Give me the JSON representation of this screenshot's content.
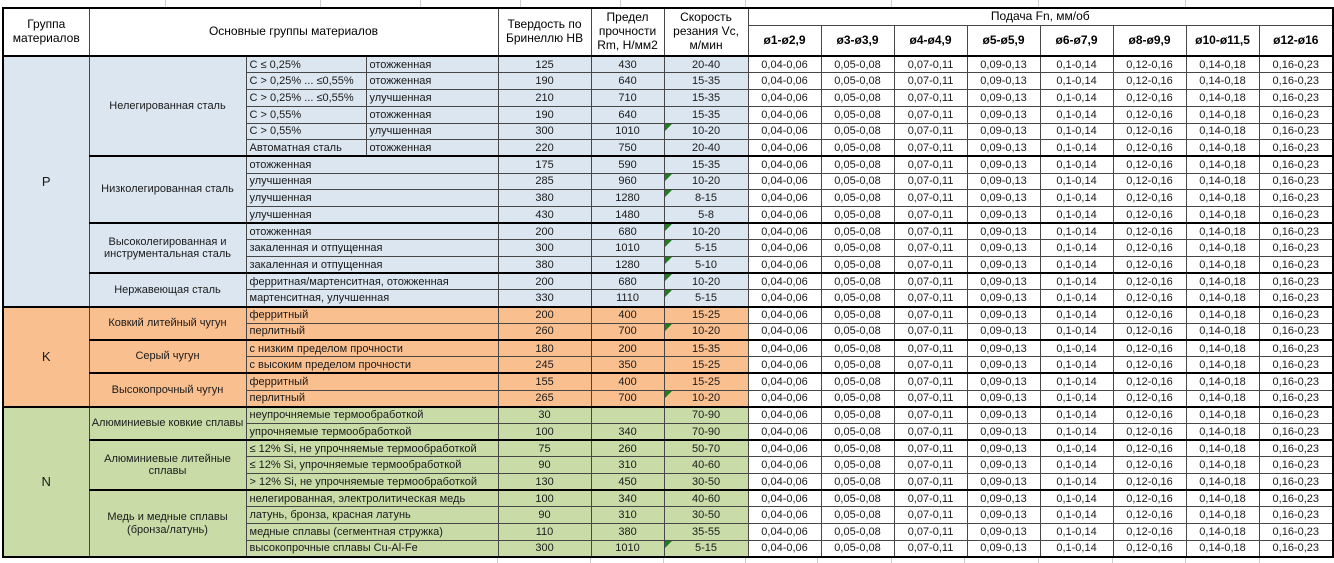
{
  "header": {
    "col_group": "Группа материалов",
    "col_main_groups": "Основные группы материалов",
    "col_hardness": "Твердость по Бринеллю HB",
    "col_strength": "Предел прочности Rm, Н/мм2",
    "col_speed": "Скорость резания Vc, м/мин",
    "col_feed": "Подача Fn, мм/об",
    "feed_columns": [
      "ø1-ø2,9",
      "ø3-ø3,9",
      "ø4-ø4,9",
      "ø5-ø5,9",
      "ø6-ø7,9",
      "ø8-ø9,9",
      "ø10-ø11,5",
      "ø12-ø16"
    ]
  },
  "feed_values": [
    "0,04-0,06",
    "0,05-0,08",
    "0,07-0,11",
    "0,09-0,13",
    "0,1-0,14",
    "0,12-0,16",
    "0,14-0,18",
    "0,16-0,23"
  ],
  "colors": {
    "section_p": "#dce6f1",
    "section_k": "#fabf8f",
    "section_n": "#c9dca8",
    "flag_triangle": "#1f7d1f",
    "thin_border": "#474747",
    "thick_border": "#000000",
    "gridline": "#cdcdcd"
  },
  "sections": [
    {
      "letter": "P",
      "color": "#dce6f1",
      "subgroups": [
        {
          "name": "Нелегированная сталь",
          "rows": [
            {
              "cond1": "C ≤ 0,25%",
              "cond2": "отожженная",
              "hb": "125",
              "rm": "430",
              "vc": "20-40",
              "flag": false
            },
            {
              "cond1": "C > 0,25% ... ≤0,55%",
              "cond2": "отожженная",
              "hb": "190",
              "rm": "640",
              "vc": "15-35",
              "flag": false
            },
            {
              "cond1": "C > 0,25% ... ≤0,55%",
              "cond2": "улучшенная",
              "hb": "210",
              "rm": "710",
              "vc": "15-35",
              "flag": false
            },
            {
              "cond1": "C > 0,55%",
              "cond2": "отожженная",
              "hb": "190",
              "rm": "640",
              "vc": "15-35",
              "flag": false
            },
            {
              "cond1": "C > 0,55%",
              "cond2": "улучшенная",
              "hb": "300",
              "rm": "1010",
              "vc": "10-20",
              "flag": true
            },
            {
              "cond1": "Автоматная сталь",
              "cond2": "отожженная",
              "hb": "220",
              "rm": "750",
              "vc": "20-40",
              "flag": false
            }
          ]
        },
        {
          "name": "Низколегированная сталь",
          "rows": [
            {
              "cond": "отожженная",
              "hb": "175",
              "rm": "590",
              "vc": "15-35",
              "flag": false
            },
            {
              "cond": "улучшенная",
              "hb": "285",
              "rm": "960",
              "vc": "10-20",
              "flag": true
            },
            {
              "cond": "улучшенная",
              "hb": "380",
              "rm": "1280",
              "vc": "8-15",
              "flag": true
            },
            {
              "cond": "улучшенная",
              "hb": "430",
              "rm": "1480",
              "vc": "5-8",
              "flag": false
            }
          ]
        },
        {
          "name": "Высоколегированная и инструментальная сталь",
          "rows": [
            {
              "cond": "отожженная",
              "hb": "200",
              "rm": "680",
              "vc": "10-20",
              "flag": true
            },
            {
              "cond": "закаленная и отпущенная",
              "hb": "300",
              "rm": "1010",
              "vc": "5-15",
              "flag": true
            },
            {
              "cond": "закаленная и отпущенная",
              "hb": "380",
              "rm": "1280",
              "vc": "5-10",
              "flag": true
            }
          ]
        },
        {
          "name": "Нержавеющая сталь",
          "rows": [
            {
              "cond": "ферритная/мартенситная, отожженная",
              "hb": "200",
              "rm": "680",
              "vc": "10-20",
              "flag": true
            },
            {
              "cond": "мартенситная, улучшенная",
              "hb": "330",
              "rm": "1110",
              "vc": "5-15",
              "flag": true
            }
          ]
        }
      ]
    },
    {
      "letter": "K",
      "color": "#fabf8f",
      "subgroups": [
        {
          "name": "Ковкий литейный чугун",
          "rows": [
            {
              "cond": "ферритный",
              "hb": "200",
              "rm": "400",
              "vc": "15-25",
              "flag": false
            },
            {
              "cond": "перлитный",
              "hb": "260",
              "rm": "700",
              "vc": "10-20",
              "flag": true
            }
          ]
        },
        {
          "name": "Серый чугун",
          "rows": [
            {
              "cond": "с низким пределом прочности",
              "hb": "180",
              "rm": "200",
              "vc": "15-35",
              "flag": false
            },
            {
              "cond": "с высоким пределом прочности",
              "hb": "245",
              "rm": "350",
              "vc": "15-25",
              "flag": false
            }
          ]
        },
        {
          "name": "Высокопрочный чугун",
          "rows": [
            {
              "cond": "ферритный",
              "hb": "155",
              "rm": "400",
              "vc": "15-25",
              "flag": false
            },
            {
              "cond": "перлитный",
              "hb": "265",
              "rm": "700",
              "vc": "10-20",
              "flag": true
            }
          ]
        }
      ]
    },
    {
      "letter": "N",
      "color": "#c9dca8",
      "subgroups": [
        {
          "name": "Алюминиевые ковкие сплавы",
          "rows": [
            {
              "cond": "неупрочняемые термообработкой",
              "hb": "30",
              "rm": "",
              "vc": "70-90",
              "flag": false
            },
            {
              "cond": "упрочняемые термообработкой",
              "hb": "100",
              "rm": "340",
              "vc": "70-90",
              "flag": false
            }
          ]
        },
        {
          "name": "Алюминиевые литейные сплавы",
          "rows": [
            {
              "cond": "≤ 12% Si, не упрочняемые термообработкой",
              "hb": "75",
              "rm": "260",
              "vc": "50-70",
              "flag": false
            },
            {
              "cond": "≤ 12% Si, упрочняемые термообработкой",
              "hb": "90",
              "rm": "310",
              "vc": "40-60",
              "flag": false
            },
            {
              "cond": "> 12% Si, не упрочняемые термообработкой",
              "hb": "130",
              "rm": "450",
              "vc": "30-50",
              "flag": false
            }
          ]
        },
        {
          "name": "Медь и медные сплавы (бронза/латунь)",
          "rows": [
            {
              "cond": "нелегированная, электролитическая медь",
              "hb": "100",
              "rm": "340",
              "vc": "40-60",
              "flag": false
            },
            {
              "cond": "латунь, бронза, красная латунь",
              "hb": "90",
              "rm": "310",
              "vc": "30-50",
              "flag": false
            },
            {
              "cond": "медные сплавы (сегментная стружка)",
              "hb": "110",
              "rm": "380",
              "vc": "35-55",
              "flag": false
            },
            {
              "cond": "высокопрочные сплавы Cu-Al-Fe",
              "hb": "300",
              "rm": "1010",
              "vc": "5-15",
              "flag": true
            }
          ]
        }
      ]
    }
  ]
}
